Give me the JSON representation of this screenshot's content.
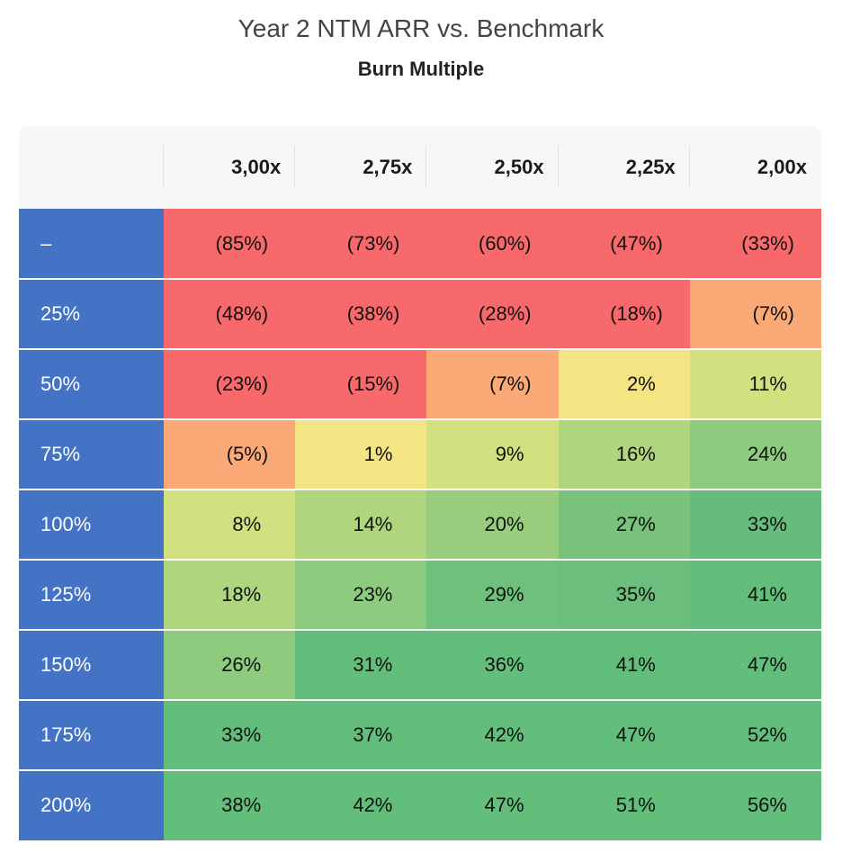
{
  "chart_data": {
    "type": "heatmap",
    "title": "Year 2 NTM ARR vs. Benchmark",
    "subtitle": "Burn Multiple",
    "columns": [
      "3,00x",
      "2,75x",
      "2,50x",
      "2,25x",
      "2,00x"
    ],
    "rows": [
      "–",
      "25%",
      "50%",
      "75%",
      "100%",
      "125%",
      "150%",
      "175%",
      "200%"
    ],
    "values": [
      [
        -85,
        -73,
        -60,
        -47,
        -33
      ],
      [
        -48,
        -38,
        -28,
        -18,
        -7
      ],
      [
        -23,
        -15,
        -7,
        2,
        11
      ],
      [
        -5,
        1,
        9,
        16,
        24
      ],
      [
        8,
        14,
        20,
        27,
        33
      ],
      [
        18,
        23,
        29,
        35,
        41
      ],
      [
        26,
        31,
        36,
        41,
        47
      ],
      [
        33,
        37,
        42,
        47,
        52
      ],
      [
        38,
        42,
        47,
        51,
        56
      ]
    ],
    "cells": [
      [
        "(85%)",
        "(73%)",
        "(60%)",
        "(47%)",
        "(33%)"
      ],
      [
        "(48%)",
        "(38%)",
        "(28%)",
        "(18%)",
        "(7%)"
      ],
      [
        "(23%)",
        "(15%)",
        "(7%)",
        "2%",
        "11%"
      ],
      [
        "(5%)",
        "1%",
        "9%",
        "16%",
        "24%"
      ],
      [
        "8%",
        "14%",
        "20%",
        "27%",
        "33%"
      ],
      [
        "18%",
        "23%",
        "29%",
        "35%",
        "41%"
      ],
      [
        "26%",
        "31%",
        "36%",
        "41%",
        "47%"
      ],
      [
        "33%",
        "37%",
        "42%",
        "47%",
        "52%"
      ],
      [
        "38%",
        "42%",
        "47%",
        "51%",
        "56%"
      ]
    ],
    "colors": [
      [
        "#f8696b",
        "#f8696b",
        "#f8696b",
        "#f8696b",
        "#f8696b"
      ],
      [
        "#f8696b",
        "#f8696b",
        "#f8696b",
        "#f8696b",
        "#fbaa77"
      ],
      [
        "#f8696b",
        "#f8696b",
        "#fbaa77",
        "#f5e484",
        "#d3e07f"
      ],
      [
        "#fbaa77",
        "#f5e484",
        "#d3e07f",
        "#b0d57f",
        "#8dcb7e"
      ],
      [
        "#d3e07f",
        "#b0d57f",
        "#99cd7e",
        "#78c27c",
        "#66bd7b"
      ],
      [
        "#b0d57f",
        "#8dcb7e",
        "#6fc07c",
        "#6bbe7b",
        "#63be7b"
      ],
      [
        "#8dcb7e",
        "#63be7b",
        "#63be7b",
        "#63be7b",
        "#63be7b"
      ],
      [
        "#63be7b",
        "#63be7b",
        "#63be7b",
        "#63be7b",
        "#63be7b"
      ],
      [
        "#63be7b",
        "#63be7b",
        "#63be7b",
        "#63be7b",
        "#63be7b"
      ]
    ],
    "row_header_color": "#4472c4",
    "header_background": "#f7f7f7"
  }
}
